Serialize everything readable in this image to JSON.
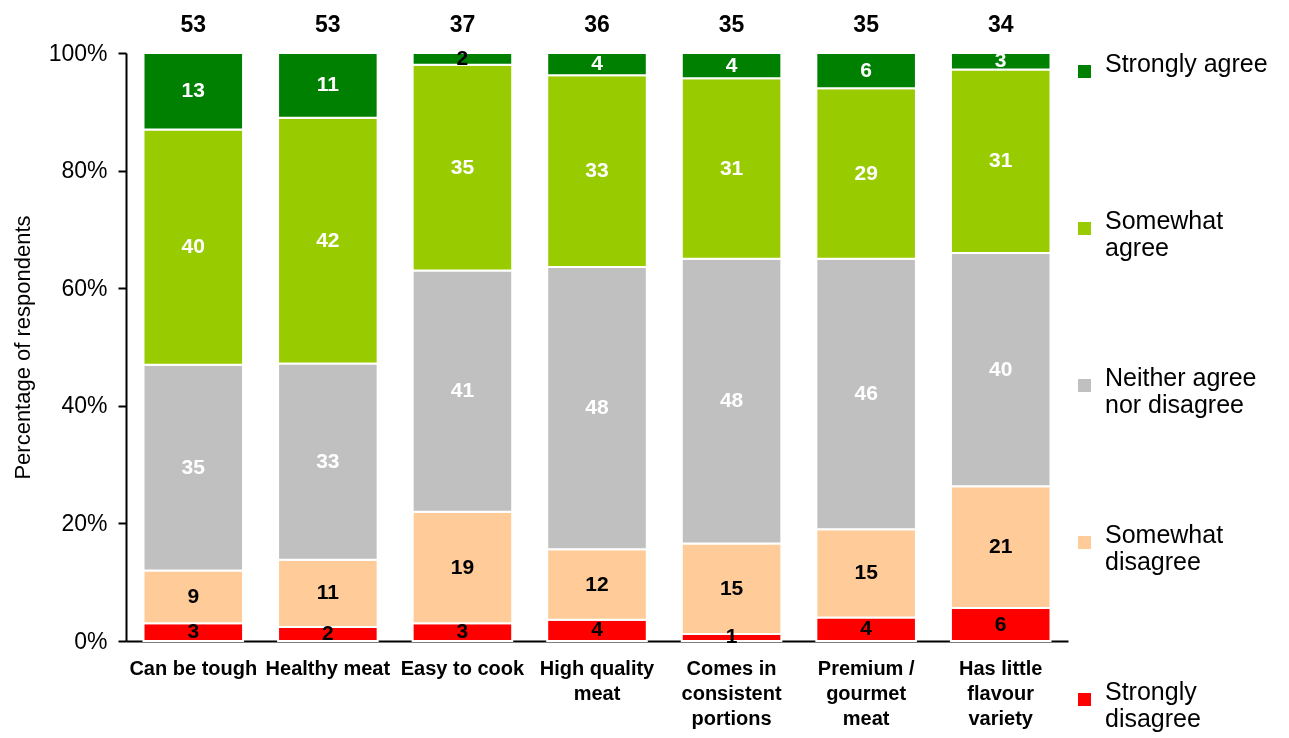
{
  "chart_data": {
    "type": "bar",
    "stacked": true,
    "ylabel": "Percentage of respondents",
    "categories": [
      "Can be tough",
      "Healthy meat",
      "Easy to cook",
      "High quality meat",
      "Comes in consistent portions",
      "Premium / gourmet meat",
      "Has little flavour variety"
    ],
    "ylim": [
      0,
      100
    ],
    "yticks": [
      {
        "value": 0,
        "label": "0%"
      },
      {
        "value": 20,
        "label": "20%"
      },
      {
        "value": 40,
        "label": "40%"
      },
      {
        "value": 60,
        "label": "60%"
      },
      {
        "value": 80,
        "label": "80%"
      },
      {
        "value": 100,
        "label": "100%"
      }
    ],
    "legend": "right",
    "annotations": [
      "53",
      "53",
      "37",
      "36",
      "35",
      "35",
      "34"
    ],
    "series": [
      {
        "name": "Strongly disagree",
        "color": "#ff0000",
        "values": [
          3,
          2.4,
          3,
          3.6,
          1.2,
          4,
          5.6
        ],
        "value_labels": [
          "3",
          "2",
          "3",
          "4",
          "1",
          "4",
          "6"
        ]
      },
      {
        "name": "Somewhat disagree",
        "color": "#ffcc99",
        "values": [
          9,
          11.4,
          19,
          12,
          15.4,
          15,
          20.7
        ],
        "value_labels": [
          "9",
          "11",
          "19",
          "12",
          "15",
          "15",
          "21"
        ]
      },
      {
        "name": "Neither agree nor disagree",
        "color": "#c0c0c0",
        "values": [
          35,
          33.4,
          41,
          48,
          48.4,
          46,
          39.7
        ],
        "value_labels": [
          "35",
          "33",
          "41",
          "48",
          "48",
          "46",
          "40"
        ]
      },
      {
        "name": "Somewhat agree",
        "color": "#99cc00",
        "values": [
          40,
          41.8,
          35,
          32.6,
          30.7,
          29,
          31.2
        ],
        "value_labels": [
          "40",
          "42",
          "35",
          "33",
          "31",
          "29",
          "31"
        ]
      },
      {
        "name": "Strongly agree",
        "color": "#008000",
        "values": [
          13,
          11.0,
          2,
          3.8,
          4.3,
          6,
          2.8
        ],
        "value_labels": [
          "13",
          "11",
          "2",
          "4",
          "4",
          "6",
          "3"
        ]
      }
    ]
  }
}
